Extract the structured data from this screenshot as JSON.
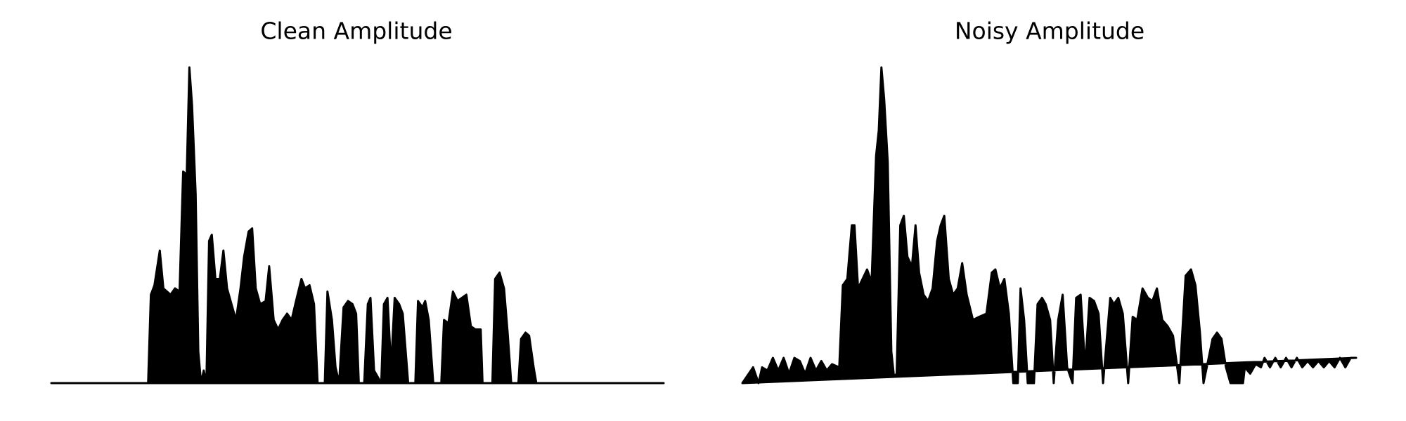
{
  "chart_data": [
    {
      "type": "area",
      "title": "Clean Amplitude",
      "color": "#000000",
      "xlim": [
        0,
        683
      ],
      "ylim": [
        0,
        1
      ],
      "x": [
        0,
        108,
        111,
        115,
        121,
        125,
        133,
        138,
        143,
        147,
        151,
        154,
        157,
        161,
        164,
        167,
        170,
        173,
        176,
        179,
        183,
        188,
        192,
        196,
        201,
        206,
        211,
        215,
        220,
        224,
        228,
        233,
        239,
        243,
        248,
        253,
        258,
        263,
        268,
        273,
        279,
        283,
        288,
        293,
        297,
        305,
        308,
        313,
        317,
        321,
        326,
        331,
        336,
        340,
        343,
        349,
        353,
        356,
        360,
        368,
        371,
        375,
        379,
        383,
        388,
        392,
        398,
        406,
        409,
        414,
        417,
        421,
        426,
        435,
        438,
        443,
        448,
        453,
        458,
        463,
        468,
        473,
        479,
        481,
        492,
        495,
        500,
        505,
        509,
        513,
        521,
        524,
        529,
        533,
        538,
        541,
        683
      ],
      "values": [
        0,
        0,
        0.28,
        0.31,
        0.42,
        0.3,
        0.28,
        0.3,
        0.29,
        0.67,
        0.66,
        1.0,
        0.88,
        0.6,
        0.1,
        0,
        0.04,
        0,
        0.45,
        0.47,
        0.33,
        0.33,
        0.42,
        0.3,
        0.25,
        0.2,
        0.3,
        0.4,
        0.48,
        0.49,
        0.3,
        0.25,
        0.26,
        0.37,
        0.2,
        0.17,
        0.2,
        0.22,
        0.2,
        0.26,
        0.33,
        0.3,
        0.31,
        0.25,
        0,
        0,
        0.29,
        0.2,
        0.05,
        0,
        0.24,
        0.26,
        0.25,
        0.22,
        0,
        0,
        0.25,
        0.27,
        0.04,
        0,
        0.25,
        0.27,
        0.05,
        0.27,
        0.25,
        0.22,
        0,
        0,
        0.26,
        0.24,
        0.26,
        0.2,
        0,
        0,
        0.2,
        0.19,
        0.29,
        0.26,
        0.27,
        0.28,
        0.18,
        0.17,
        0.17,
        0,
        0,
        0.33,
        0.35,
        0.3,
        0.16,
        0,
        0,
        0.14,
        0.16,
        0.15,
        0.05,
        0,
        0
      ]
    },
    {
      "type": "area",
      "title": "Noisy Amplitude",
      "color": "#000000",
      "xlim": [
        0,
        684
      ],
      "ylim": [
        0,
        1
      ],
      "x": [
        0,
        12,
        18,
        22,
        28,
        34,
        40,
        46,
        52,
        58,
        64,
        70,
        76,
        82,
        88,
        94,
        100,
        108,
        112,
        117,
        122,
        125,
        129,
        134,
        139,
        144,
        149,
        152,
        155,
        158,
        162,
        166,
        169,
        172,
        176,
        180,
        184,
        189,
        193,
        197,
        202,
        207,
        212,
        217,
        221,
        225,
        230,
        235,
        240,
        245,
        250,
        257,
        264,
        272,
        278,
        282,
        287,
        292,
        297,
        302,
        307,
        310,
        314,
        318,
        325,
        329,
        334,
        338,
        343,
        347,
        352,
        357,
        362,
        368,
        372,
        377,
        382,
        387,
        392,
        397,
        402,
        410,
        414,
        419,
        424,
        430,
        435,
        440,
        446,
        452,
        457,
        462,
        468,
        474,
        480,
        487,
        494,
        500,
        505,
        510,
        514,
        524,
        529,
        534,
        539,
        544,
        558,
        560,
        566,
        572,
        578,
        582,
        588,
        594,
        600,
        606,
        612,
        618,
        624,
        630,
        636,
        642,
        648,
        654,
        660,
        666,
        672,
        678,
        684
      ],
      "values": [
        0,
        0.05,
        0,
        0.05,
        0.04,
        0.08,
        0.04,
        0.08,
        0.03,
        0.08,
        0.07,
        0.03,
        0.08,
        0.04,
        0.07,
        0.04,
        0.06,
        0.05,
        0.31,
        0.33,
        0.5,
        0.5,
        0.3,
        0.33,
        0.36,
        0.32,
        0.72,
        0.8,
        1.0,
        0.9,
        0.7,
        0.1,
        0.02,
        0.03,
        0.5,
        0.53,
        0.4,
        0.37,
        0.5,
        0.35,
        0.28,
        0.26,
        0.3,
        0.45,
        0.5,
        0.53,
        0.33,
        0.28,
        0.3,
        0.38,
        0.28,
        0.2,
        0.21,
        0.22,
        0.35,
        0.36,
        0.3,
        0.33,
        0.22,
        0,
        0,
        0.3,
        0.2,
        0,
        0,
        0.25,
        0.27,
        0.25,
        0.2,
        0,
        0.2,
        0.28,
        0.05,
        0,
        0.27,
        0.28,
        0.05,
        0.27,
        0.26,
        0.22,
        0,
        0.27,
        0.25,
        0.27,
        0.22,
        0,
        0.21,
        0.2,
        0.3,
        0.27,
        0.26,
        0.3,
        0.2,
        0.18,
        0.15,
        0,
        0.34,
        0.36,
        0.31,
        0.16,
        0,
        0.14,
        0.16,
        0.14,
        0.05,
        0,
        0,
        0.05,
        0.03,
        0.06,
        0.05,
        0.08,
        0.05,
        0.08,
        0.05,
        0.08,
        0.05,
        0.08,
        0.05,
        0.07,
        0.05,
        0.07,
        0.05,
        0.07,
        0.05,
        0.08,
        0.05,
        0.08,
        0.08
      ]
    }
  ]
}
